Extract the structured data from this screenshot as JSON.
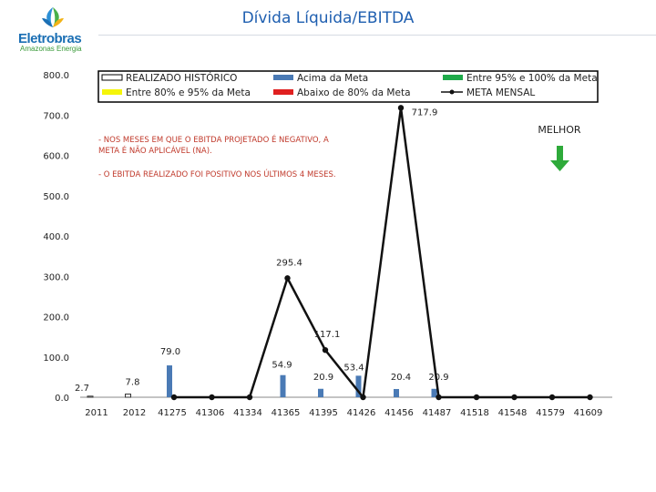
{
  "logo": {
    "name": "Eletrobras",
    "tagline": "Amazonas Energia"
  },
  "header": {
    "title": "Dívida Líquida/EBITDA"
  },
  "colors": {
    "realizado_fill": "#ffffff",
    "acima_meta": "#4a7ab5",
    "entre95_100": "#1faa4a",
    "entre80_95": "#f5f50a",
    "abaixo80": "#e02020",
    "meta_line": "#111111",
    "annotation": "#c0392b",
    "arrow": "#2eaa3a"
  },
  "annotations": {
    "note1": [
      "- NOS MESES EM QUE O EBITDA PROJETADO É NEGATIVO, A",
      "META É NÃO APLICÁVEL (NA)."
    ],
    "note2": "- O EBITDA REALIZADO FOI POSITIVO NOS ÚLTIMOS 4 MESES.",
    "melhor": "MELHOR"
  },
  "chart_data": {
    "type": "bar",
    "ylim": [
      0,
      800
    ],
    "yticks": [
      "0.0",
      "100.0",
      "200.0",
      "300.0",
      "400.0",
      "500.0",
      "600.0",
      "700.0",
      "800.0"
    ],
    "categories": [
      "2011",
      "2012",
      "41275",
      "41306",
      "41334",
      "41365",
      "41395",
      "41426",
      "41456",
      "41487",
      "41518",
      "41548",
      "41579",
      "41609"
    ],
    "legend": [
      {
        "label": "REALIZADO HISTÓRICO",
        "kind": "box"
      },
      {
        "label": "Acima da Meta",
        "kind": "blue"
      },
      {
        "label": "Entre 95% e 100% da Meta",
        "kind": "green"
      },
      {
        "label": "Entre 80% e 95% da Meta",
        "kind": "yellow"
      },
      {
        "label": "Abaixo de 80% da Meta",
        "kind": "red"
      },
      {
        "label": "META MENSAL",
        "kind": "line"
      }
    ],
    "series": [
      {
        "name": "REALIZADO HISTÓRICO",
        "values": [
          2.7,
          7.8,
          null,
          null,
          null,
          null,
          null,
          null,
          null,
          null,
          null,
          null,
          null,
          null
        ]
      },
      {
        "name": "Acima da Meta",
        "values": [
          null,
          null,
          79.0,
          null,
          null,
          54.9,
          20.9,
          53.4,
          20.4,
          20.9,
          null,
          null,
          null,
          null
        ]
      },
      {
        "name": "META MENSAL",
        "values": [
          null,
          null,
          0,
          0,
          0,
          295.4,
          117.1,
          0,
          717.9,
          0,
          0,
          0,
          0,
          0
        ]
      }
    ],
    "bar_labels": [
      "2.7",
      "7.8",
      "79.0",
      "54.9",
      "20.9",
      "53.4",
      "20.4",
      "20.9"
    ],
    "line_labels": [
      "295.4",
      "117.1",
      "717.9"
    ]
  }
}
